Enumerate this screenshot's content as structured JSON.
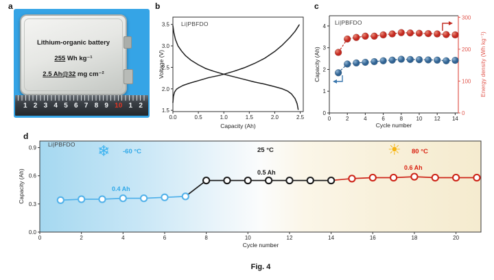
{
  "figure": {
    "caption": "Fig. 4"
  },
  "panels": {
    "a": "a",
    "b": "b",
    "c": "c",
    "d": "d"
  },
  "panel_a": {
    "battery_name": "Lithium-organic battery",
    "energy_value": "255",
    "energy_unit": " Wh kg⁻¹",
    "capacity_loading": "2.5 Ah@32",
    "loading_unit": " mg cm⁻²",
    "ruler_numbers": [
      "1",
      "2",
      "3",
      "4",
      "5",
      "6",
      "7",
      "8",
      "9",
      "10",
      "1",
      "2"
    ],
    "ruler_highlight_index": 9,
    "photo_bg_color": "#35a4e6"
  },
  "panel_d_annotations": {
    "cold_icon": "❄",
    "cold_temp": "-60 °C",
    "cold_capacity": "0.4 Ah",
    "cold_color": "#2fa8e8",
    "room_temp": "25 °C",
    "room_capacity": "0.5 Ah",
    "room_color": "#1b1b1b",
    "hot_icon": "☀",
    "hot_temp": "80 °C",
    "hot_capacity": "0.6 Ah",
    "hot_color": "#d91f0f",
    "sun_color": "#f7b512"
  },
  "chart_data": [
    {
      "id": "b",
      "type": "line",
      "title": "Li|PBFDO",
      "xlabel": "Capacity (Ah)",
      "ylabel": "Voltage (V)",
      "xlim": [
        0,
        2.56
      ],
      "ylim": [
        1.47,
        3.67
      ],
      "xticks": {
        "values": [
          0,
          0.5,
          1,
          1.5,
          2,
          2.5
        ],
        "labels": [
          "0.0",
          "0.5",
          "1.0",
          "1.5",
          "2.0",
          "2.5"
        ]
      },
      "yticks": {
        "values": [
          1.5,
          2,
          2.5,
          3,
          3.5
        ],
        "labels": [
          "1.5",
          "2.0",
          "2.5",
          "3.0",
          "3.5"
        ]
      },
      "series": [
        {
          "name": "discharge-curve",
          "color": "#1c1c1c",
          "x": [
            0,
            0.02,
            0.05,
            0.1,
            0.17,
            0.25,
            0.35,
            0.5,
            0.65,
            0.8,
            1.0,
            1.2,
            1.4,
            1.6,
            1.8,
            2.0,
            2.15,
            2.25,
            2.33,
            2.4,
            2.44,
            2.46
          ],
          "y": [
            3.47,
            3.3,
            3.15,
            3.0,
            2.88,
            2.77,
            2.67,
            2.56,
            2.47,
            2.41,
            2.34,
            2.28,
            2.22,
            2.16,
            2.11,
            2.05,
            2.0,
            1.95,
            1.88,
            1.77,
            1.65,
            1.52
          ]
        },
        {
          "name": "charge-curve",
          "color": "#1c1c1c",
          "x": [
            0,
            0.01,
            0.03,
            0.07,
            0.12,
            0.2,
            0.35,
            0.5,
            0.7,
            0.9,
            1.0,
            1.2,
            1.4,
            1.6,
            1.8,
            2.0,
            2.15,
            2.3,
            2.4,
            2.48
          ],
          "y": [
            1.68,
            1.82,
            1.92,
            1.99,
            2.03,
            2.08,
            2.14,
            2.19,
            2.26,
            2.31,
            2.34,
            2.41,
            2.49,
            2.59,
            2.71,
            2.87,
            3.02,
            3.2,
            3.34,
            3.49
          ]
        }
      ]
    },
    {
      "id": "c",
      "type": "scatter",
      "title": "Li|PBFDO",
      "xlabel": "Cycle number",
      "ylabel": "Capacity (Ah)",
      "ylabel_right": "Energy density (Wh kg⁻¹)",
      "right_axis_color": "#e0564d",
      "xlim": [
        0,
        14.35
      ],
      "ylim": [
        0,
        4.47
      ],
      "ylim_right": [
        0,
        305
      ],
      "xticks": {
        "values": [
          0,
          2,
          4,
          6,
          8,
          10,
          12,
          14
        ],
        "labels": [
          "0",
          "2",
          "4",
          "6",
          "8",
          "10",
          "12",
          "14"
        ]
      },
      "yticks": {
        "values": [
          0,
          1,
          2,
          3,
          4
        ],
        "labels": [
          "0",
          "1",
          "2",
          "3",
          "4"
        ]
      },
      "yticks_right": {
        "values": [
          0,
          100,
          200,
          300
        ],
        "labels": [
          "0",
          "100",
          "200",
          "300"
        ]
      },
      "x": [
        1,
        2,
        3,
        4,
        5,
        6,
        7,
        8,
        9,
        10,
        11,
        12,
        13,
        14
      ],
      "series": [
        {
          "name": "capacity",
          "axis": "left",
          "marker": "sphere",
          "color": "#2e6191",
          "highlight": "#8fb4d4",
          "values": [
            1.85,
            2.25,
            2.3,
            2.33,
            2.36,
            2.4,
            2.43,
            2.47,
            2.46,
            2.45,
            2.44,
            2.43,
            2.4,
            2.42
          ]
        },
        {
          "name": "energy-density",
          "axis": "right",
          "marker": "sphere",
          "color": "#c2281f",
          "highlight": "#eb8a78",
          "values": [
            190,
            232,
            237,
            241,
            241,
            245,
            248,
            252,
            251,
            250,
            249,
            248,
            246,
            245
          ]
        }
      ]
    },
    {
      "id": "d",
      "type": "scatter",
      "title": "Li|PBFDO",
      "xlabel": "Cycle number",
      "ylabel": "Capacity (Ah)",
      "xlim": [
        0,
        21.2
      ],
      "ylim": [
        0,
        0.97
      ],
      "xticks": {
        "values": [
          0,
          2,
          4,
          6,
          8,
          10,
          12,
          14,
          16,
          18,
          20
        ],
        "labels": [
          "0",
          "2",
          "4",
          "6",
          "8",
          "10",
          "12",
          "14",
          "16",
          "18",
          "20"
        ]
      },
      "yticks": {
        "values": [
          0,
          0.3,
          0.6,
          0.9
        ],
        "labels": [
          "0.0",
          "0.3",
          "0.6",
          "0.9"
        ]
      },
      "series": [
        {
          "name": "minus-60C-capacity",
          "color": "#53b2ea",
          "marker": "open",
          "x": [
            1,
            2,
            3,
            4,
            5,
            6,
            7
          ],
          "y": [
            0.34,
            0.35,
            0.35,
            0.36,
            0.36,
            0.37,
            0.38
          ]
        },
        {
          "name": "25C-capacity",
          "color": "#1b1b1b",
          "marker": "open",
          "connect_prev": true,
          "x": [
            8,
            9,
            10,
            11,
            12,
            13,
            14
          ],
          "y": [
            0.55,
            0.55,
            0.55,
            0.55,
            0.55,
            0.55,
            0.55
          ]
        },
        {
          "name": "80C-capacity",
          "color": "#cd2418",
          "marker": "open",
          "connect_prev": true,
          "x": [
            15,
            16,
            17,
            18,
            19,
            20,
            21
          ],
          "y": [
            0.57,
            0.58,
            0.58,
            0.59,
            0.58,
            0.58,
            0.58
          ]
        }
      ],
      "background_gradient": [
        "#a5d8f0",
        "#c7e6f6",
        "#e9f4fa",
        "#fbfcfc",
        "#fbf6e8",
        "#f8f0da",
        "#f5ebcf"
      ]
    }
  ]
}
